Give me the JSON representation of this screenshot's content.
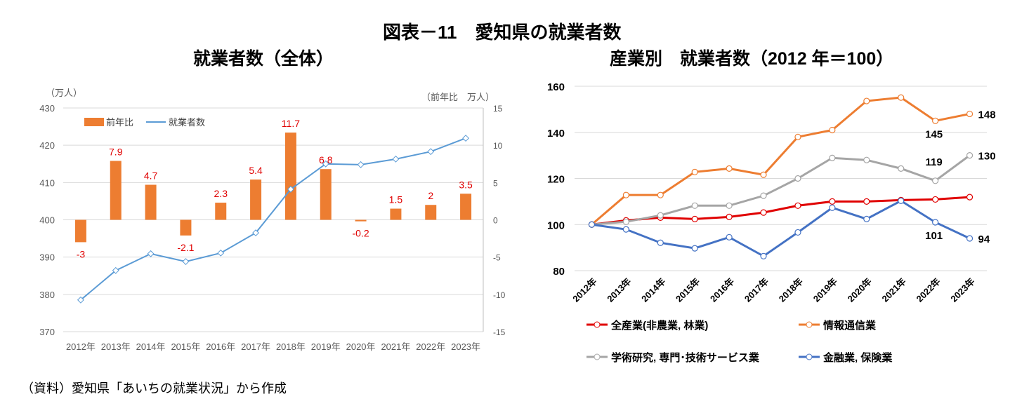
{
  "title": "図表－11　愛知県の就業者数",
  "source": "（資料）愛知県「あいちの就業状況」から作成",
  "chart_data": [
    {
      "type": "bar+line",
      "title": "就業者数（全体）",
      "left_unit": "（万人）",
      "right_unit": "（前年比　万人）",
      "categories": [
        "2012年",
        "2013年",
        "2014年",
        "2015年",
        "2016年",
        "2017年",
        "2018年",
        "2019年",
        "2020年",
        "2021年",
        "2022年",
        "2023年"
      ],
      "left_ylim": [
        370,
        430
      ],
      "left_ticks": [
        370,
        380,
        390,
        400,
        410,
        420,
        430
      ],
      "right_ylim": [
        -15,
        15
      ],
      "right_ticks": [
        -15,
        -10,
        -5,
        0,
        5,
        10,
        15
      ],
      "grid": true,
      "legend": "top-left",
      "series": [
        {
          "name": "前年比",
          "type": "bar",
          "axis": "right",
          "color": "#ED7D31",
          "values": [
            -3,
            7.9,
            4.7,
            -2.1,
            2.3,
            5.4,
            11.7,
            6.8,
            -0.2,
            1.5,
            2,
            3.5
          ],
          "labels": [
            "-3",
            "7.9",
            "4.7",
            "-2.1",
            "2.3",
            "5.4",
            "11.7",
            "6.8",
            "-0.2",
            "1.5",
            "2",
            "3.5"
          ],
          "label_color": "#E00000"
        },
        {
          "name": "就業者数",
          "type": "line",
          "axis": "left",
          "color": "#5B9BD5",
          "values": [
            378.5,
            386.4,
            390.9,
            388.8,
            391.1,
            396.5,
            408.2,
            415.0,
            414.8,
            416.3,
            418.3,
            421.9
          ]
        }
      ]
    },
    {
      "type": "line",
      "title": "産業別　就業者数（2012 年＝100）",
      "categories": [
        "2012年",
        "2013年",
        "2014年",
        "2015年",
        "2016年",
        "2017年",
        "2018年",
        "2019年",
        "2020年",
        "2021年",
        "2022年",
        "2023年"
      ],
      "ylim": [
        80,
        160
      ],
      "yticks": [
        80,
        100,
        120,
        140,
        160
      ],
      "grid": true,
      "legend": "bottom",
      "series": [
        {
          "name": "全産業(非農業, 林業)",
          "color": "#E00000",
          "values": [
            100,
            101.8,
            103.0,
            102.4,
            103.3,
            105.2,
            108.2,
            110.0,
            110.0,
            110.6,
            110.9,
            111.9
          ]
        },
        {
          "name": "情報通信業",
          "color": "#ED7D31",
          "values": [
            100,
            112.8,
            112.8,
            122.8,
            124.3,
            121.6,
            138.0,
            141.0,
            153.6,
            155.1,
            145,
            148
          ],
          "annotations": [
            {
              "index": 10,
              "label": "145"
            },
            {
              "index": 11,
              "label": "148"
            }
          ]
        },
        {
          "name": "学術研究, 専門･技術サービス業",
          "color": "#A5A5A5",
          "values": [
            100,
            101.2,
            104.0,
            108.2,
            108.2,
            112.5,
            120.0,
            128.9,
            128.0,
            124.3,
            119,
            130
          ],
          "annotations": [
            {
              "index": 10,
              "label": "119"
            },
            {
              "index": 11,
              "label": "130"
            }
          ]
        },
        {
          "name": "金融業, 保険業",
          "color": "#4472C4",
          "values": [
            100,
            97.9,
            92.1,
            89.7,
            94.5,
            86.3,
            96.6,
            107.3,
            102.4,
            110.3,
            101,
            94
          ],
          "annotations": [
            {
              "index": 10,
              "label": "101"
            },
            {
              "index": 11,
              "label": "94"
            }
          ]
        }
      ]
    }
  ]
}
